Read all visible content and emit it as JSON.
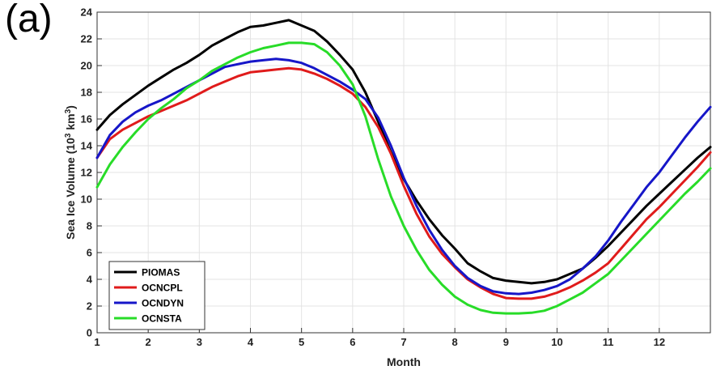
{
  "panel_label": "(a)",
  "chart_data": {
    "type": "line",
    "title": "",
    "xlabel": "Month",
    "ylabel": "Sea Ice Volume (10",
    "ylabel_exp": "3",
    "ylabel_unit": " km",
    "ylabel_unit_exp": "3",
    "ylabel_close": ")",
    "xlim": [
      1,
      13
    ],
    "ylim": [
      0,
      24
    ],
    "xticks": [
      1,
      2,
      3,
      4,
      5,
      6,
      7,
      8,
      9,
      10,
      11,
      12
    ],
    "yticks": [
      0,
      2,
      4,
      6,
      8,
      10,
      12,
      14,
      16,
      18,
      20,
      22,
      24
    ],
    "grid": true,
    "legend_position": "bottom-left",
    "series": [
      {
        "name": "PIOMAS",
        "color": "#000000",
        "x": [
          1,
          1.25,
          1.5,
          1.75,
          2,
          2.25,
          2.5,
          2.75,
          3,
          3.25,
          3.5,
          3.75,
          4,
          4.25,
          4.5,
          4.75,
          5,
          5.25,
          5.5,
          5.75,
          6,
          6.25,
          6.5,
          6.75,
          7,
          7.25,
          7.5,
          7.75,
          8,
          8.25,
          8.5,
          8.75,
          9,
          9.25,
          9.5,
          9.75,
          10,
          10.25,
          10.5,
          10.75,
          11,
          11.25,
          11.5,
          11.75,
          12,
          12.25,
          12.5,
          12.75,
          13
        ],
        "y": [
          15.2,
          16.3,
          17.1,
          17.8,
          18.5,
          19.1,
          19.7,
          20.2,
          20.8,
          21.5,
          22.0,
          22.5,
          22.9,
          23.0,
          23.2,
          23.4,
          23.0,
          22.6,
          21.8,
          20.8,
          19.7,
          18.0,
          15.8,
          13.5,
          11.5,
          9.9,
          8.5,
          7.3,
          6.3,
          5.2,
          4.6,
          4.1,
          3.9,
          3.8,
          3.7,
          3.8,
          4.0,
          4.4,
          4.8,
          5.6,
          6.5,
          7.5,
          8.5,
          9.5,
          10.4,
          11.3,
          12.2,
          13.1,
          13.9
        ]
      },
      {
        "name": "OCNCPL",
        "color": "#e01b1b",
        "x": [
          1,
          1.25,
          1.5,
          1.75,
          2,
          2.25,
          2.5,
          2.75,
          3,
          3.25,
          3.5,
          3.75,
          4,
          4.25,
          4.5,
          4.75,
          5,
          5.25,
          5.5,
          5.75,
          6,
          6.25,
          6.5,
          6.75,
          7,
          7.25,
          7.5,
          7.75,
          8,
          8.25,
          8.5,
          8.75,
          9,
          9.25,
          9.5,
          9.75,
          10,
          10.25,
          10.5,
          10.75,
          11,
          11.25,
          11.5,
          11.75,
          12,
          12.25,
          12.5,
          12.75,
          13
        ],
        "y": [
          13.1,
          14.5,
          15.2,
          15.7,
          16.2,
          16.6,
          17.0,
          17.4,
          17.9,
          18.4,
          18.8,
          19.2,
          19.5,
          19.6,
          19.7,
          19.8,
          19.7,
          19.4,
          19.0,
          18.5,
          17.9,
          16.9,
          15.4,
          13.4,
          11.0,
          8.9,
          7.2,
          5.9,
          4.9,
          4.0,
          3.4,
          2.9,
          2.6,
          2.55,
          2.55,
          2.7,
          3.0,
          3.4,
          3.9,
          4.5,
          5.2,
          6.3,
          7.4,
          8.5,
          9.4,
          10.4,
          11.4,
          12.4,
          13.5
        ]
      },
      {
        "name": "OCNDYN",
        "color": "#1616c8",
        "x": [
          1,
          1.25,
          1.5,
          1.75,
          2,
          2.25,
          2.5,
          2.75,
          3,
          3.25,
          3.5,
          3.75,
          4,
          4.25,
          4.5,
          4.75,
          5,
          5.25,
          5.5,
          5.75,
          6,
          6.25,
          6.5,
          6.75,
          7,
          7.25,
          7.5,
          7.75,
          8,
          8.25,
          8.5,
          8.75,
          9,
          9.25,
          9.5,
          9.75,
          10,
          10.25,
          10.5,
          10.75,
          11,
          11.25,
          11.5,
          11.75,
          12,
          12.25,
          12.5,
          12.75,
          13
        ],
        "y": [
          13.1,
          14.8,
          15.8,
          16.5,
          17.0,
          17.4,
          17.9,
          18.4,
          18.9,
          19.4,
          19.9,
          20.1,
          20.3,
          20.4,
          20.5,
          20.4,
          20.2,
          19.8,
          19.3,
          18.8,
          18.2,
          17.5,
          16.1,
          14.0,
          11.6,
          9.5,
          7.7,
          6.2,
          5.0,
          4.1,
          3.5,
          3.1,
          2.95,
          2.9,
          3.0,
          3.2,
          3.5,
          4.0,
          4.8,
          5.7,
          6.9,
          8.3,
          9.6,
          10.9,
          12.0,
          13.3,
          14.6,
          15.8,
          16.9
        ]
      },
      {
        "name": "OCNSTA",
        "color": "#28dc28",
        "x": [
          1,
          1.25,
          1.5,
          1.75,
          2,
          2.25,
          2.5,
          2.75,
          3,
          3.25,
          3.5,
          3.75,
          4,
          4.25,
          4.5,
          4.75,
          5,
          5.25,
          5.5,
          5.75,
          6,
          6.25,
          6.5,
          6.75,
          7,
          7.25,
          7.5,
          7.75,
          8,
          8.25,
          8.5,
          8.75,
          9,
          9.25,
          9.5,
          9.75,
          10,
          10.25,
          10.5,
          10.75,
          11,
          11.25,
          11.5,
          11.75,
          12,
          12.25,
          12.5,
          12.75,
          13
        ],
        "y": [
          10.9,
          12.6,
          13.9,
          15.0,
          16.0,
          16.8,
          17.5,
          18.3,
          18.9,
          19.6,
          20.1,
          20.6,
          21.0,
          21.3,
          21.5,
          21.7,
          21.7,
          21.6,
          21.0,
          20.0,
          18.6,
          16.2,
          13.0,
          10.2,
          8.0,
          6.2,
          4.7,
          3.6,
          2.7,
          2.1,
          1.7,
          1.5,
          1.45,
          1.45,
          1.5,
          1.65,
          2.0,
          2.5,
          3.0,
          3.7,
          4.4,
          5.4,
          6.4,
          7.4,
          8.4,
          9.4,
          10.4,
          11.3,
          12.3
        ]
      }
    ]
  }
}
